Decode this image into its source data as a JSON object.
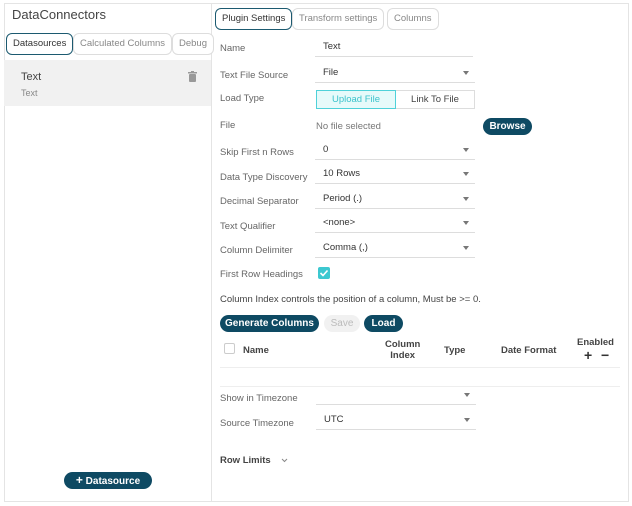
{
  "app": {
    "title": "DataConnectors"
  },
  "left_tabs": [
    {
      "label": "Datasources"
    },
    {
      "label": "Calculated Columns"
    },
    {
      "label": "Debug"
    }
  ],
  "datasource_item": {
    "name": "Text",
    "subtitle": "Text",
    "icon": "trash-icon"
  },
  "add_datasource": {
    "label": "Datasource",
    "icon": "plus-icon"
  },
  "right_tabs": [
    {
      "label": "Plugin Settings"
    },
    {
      "label": "Transform settings"
    },
    {
      "label": "Columns"
    }
  ],
  "form": {
    "name": {
      "label": "Name",
      "value": "Text"
    },
    "text_file_source": {
      "label": "Text File Source",
      "value": "File"
    },
    "load_type": {
      "label": "Load Type",
      "options": [
        "Upload File",
        "Link To File"
      ],
      "selected": "Upload File"
    },
    "file": {
      "label": "File",
      "value": "No file selected",
      "browse": "Browse"
    },
    "skip_rows": {
      "label": "Skip First n Rows",
      "value": "0"
    },
    "data_type_discovery": {
      "label": "Data Type Discovery",
      "value": "10 Rows"
    },
    "decimal_separator": {
      "label": "Decimal Separator",
      "value": "Period (.)"
    },
    "text_qualifier": {
      "label": "Text Qualifier",
      "value": "<none>"
    },
    "column_delimiter": {
      "label": "Column Delimiter",
      "value": "Comma (,)"
    },
    "first_row_headings": {
      "label": "First Row Headings",
      "checked": true
    },
    "note": "Column Index controls the position of a column, Must be >= 0.",
    "buttons": {
      "generate": "Generate Columns",
      "save": "Save",
      "load": "Load"
    },
    "table_headers": {
      "name": "Name",
      "column_index_1": "Column",
      "column_index_2": "Index",
      "type": "Type",
      "date_format": "Date Format",
      "enabled": "Enabled",
      "add": "+",
      "remove": "−"
    },
    "show_in_timezone": {
      "label": "Show in Timezone",
      "value": ""
    },
    "source_timezone": {
      "label": "Source Timezone",
      "value": "UTC"
    },
    "row_limits": {
      "label": "Row Limits"
    }
  },
  "colors": {
    "accent": "#0e4a63",
    "teal": "#4fd1d9",
    "selected_bg": "#f1f1f1"
  }
}
